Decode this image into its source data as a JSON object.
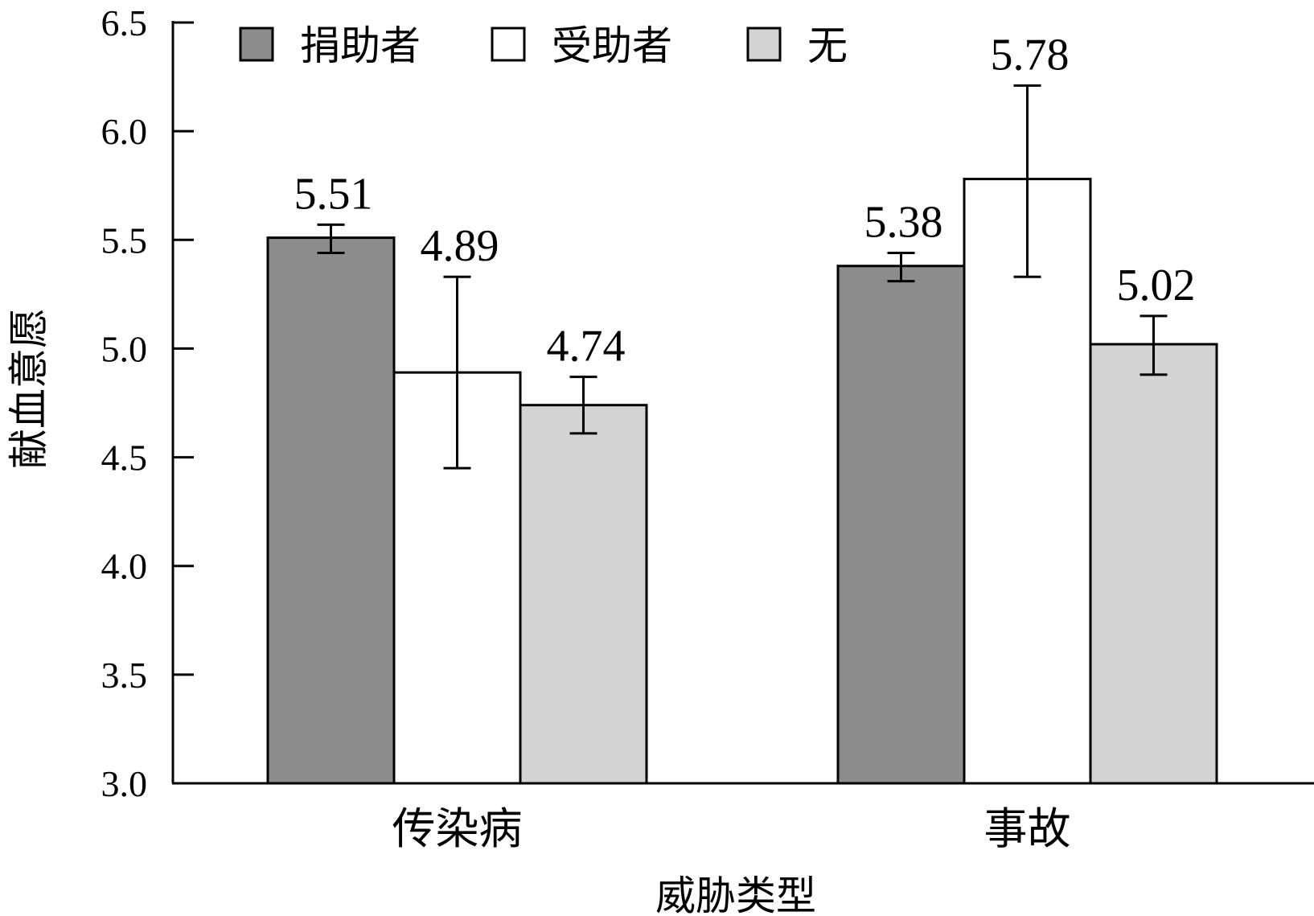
{
  "chart_data": {
    "type": "bar",
    "title": "",
    "xlabel": "威胁类型",
    "ylabel": "献血意愿",
    "ylim": [
      3.0,
      6.5
    ],
    "yticks": [
      "3.0",
      "3.5",
      "4.0",
      "4.5",
      "5.0",
      "5.5",
      "6.0",
      "6.5"
    ],
    "categories": [
      "传染病",
      "事故"
    ],
    "legend_position": "top-left",
    "grid": false,
    "series": [
      {
        "name": "捐助者",
        "color": "#8c8c8c",
        "values": [
          5.51,
          5.38
        ],
        "labels": [
          "5.51",
          "5.38"
        ],
        "error": [
          [
            5.44,
            5.57
          ],
          [
            5.31,
            5.44
          ]
        ]
      },
      {
        "name": "受助者",
        "color": "#ffffff",
        "values": [
          4.89,
          5.78
        ],
        "labels": [
          "4.89",
          "5.78"
        ],
        "error": [
          [
            4.45,
            5.33
          ],
          [
            5.33,
            6.21
          ]
        ]
      },
      {
        "name": "无",
        "color": "#d3d3d3",
        "values": [
          4.74,
          5.02
        ],
        "labels": [
          "4.74",
          "5.02"
        ],
        "error": [
          [
            4.61,
            4.87
          ],
          [
            4.88,
            5.15
          ]
        ]
      }
    ]
  }
}
